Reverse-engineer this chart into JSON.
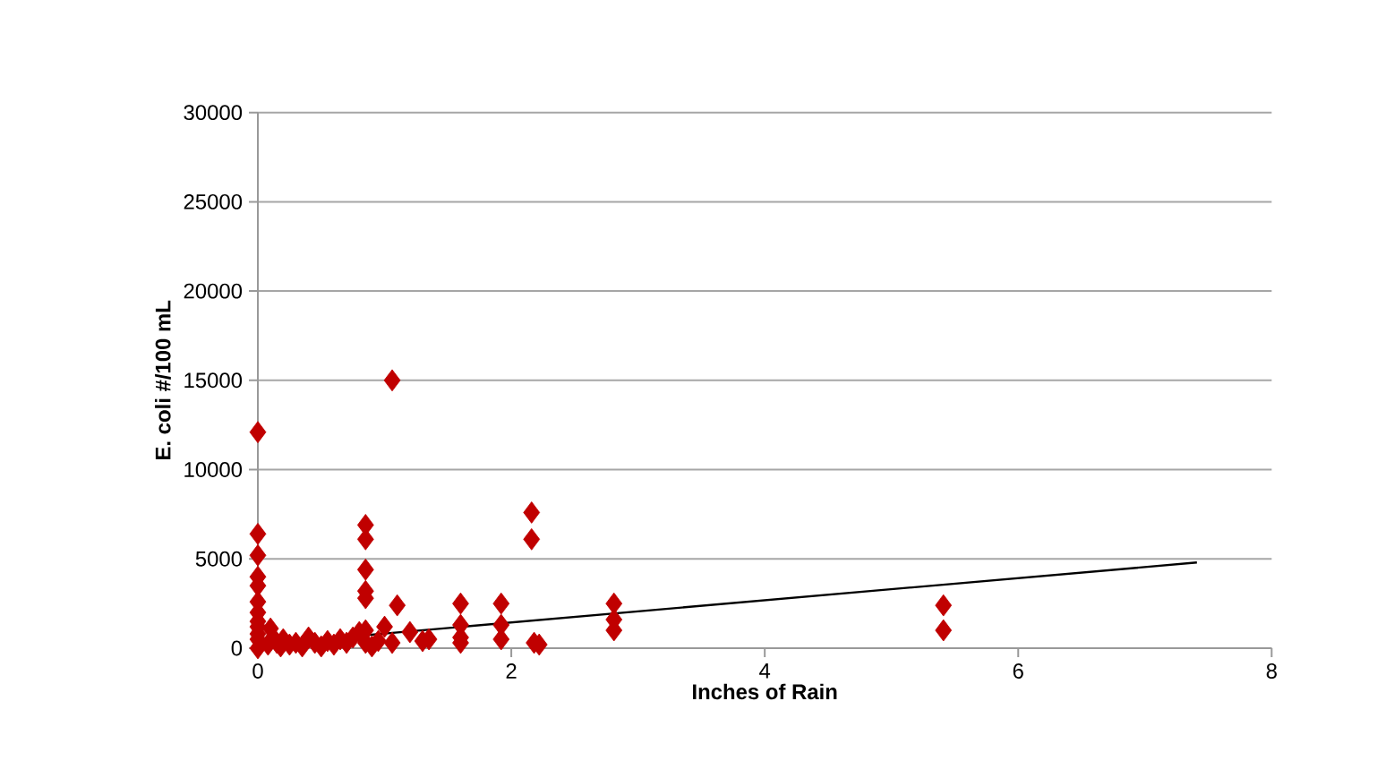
{
  "chart_data": {
    "type": "scatter",
    "xlabel": "Inches of Rain",
    "ylabel": "E. coli #/100 mL",
    "xlim": [
      0,
      8
    ],
    "xticks": [
      0,
      2,
      4,
      6,
      8
    ],
    "ylim": [
      0,
      30000
    ],
    "yticks": [
      0,
      5000,
      10000,
      15000,
      20000,
      25000,
      30000
    ],
    "grid": "y",
    "marker": "diamond",
    "series": [
      {
        "color": "#c00000",
        "x": [
          0,
          0,
          0,
          0,
          0,
          0,
          0,
          0,
          0,
          0,
          0,
          0,
          0.08,
          0.1,
          0.12,
          0.15,
          0.18,
          0.2,
          0.25,
          0.3,
          0.35,
          0.4,
          0.45,
          0.5,
          0.55,
          0.6,
          0.65,
          0.7,
          0.75,
          0.8,
          0.85,
          0.85,
          0.85,
          0.85,
          0.85,
          0.85,
          0.85,
          0.9,
          0.95,
          1.0,
          1.06,
          1.06,
          1.1,
          1.2,
          1.3,
          1.35,
          1.6,
          1.6,
          1.6,
          1.6,
          1.92,
          1.92,
          1.92,
          2.16,
          2.16,
          2.18,
          2.22,
          2.81,
          2.81,
          2.81,
          5.41,
          5.41
        ],
        "values": [
          12100,
          6400,
          5200,
          4000,
          3500,
          2600,
          2000,
          1500,
          1200,
          800,
          500,
          0,
          200,
          1100,
          600,
          300,
          100,
          500,
          200,
          300,
          100,
          600,
          300,
          100,
          400,
          200,
          500,
          300,
          600,
          900,
          6900,
          6100,
          4400,
          3200,
          2800,
          1000,
          300,
          100,
          400,
          1200,
          15000,
          300,
          2400,
          900,
          400,
          500,
          2500,
          1300,
          600,
          300,
          2500,
          1300,
          500,
          7600,
          6100,
          300,
          200,
          2500,
          1600,
          1000,
          2400,
          1000
        ]
      },
      {
        "type": "line",
        "color": "#000000",
        "marker": "none",
        "x": [
          0,
          7.41
        ],
        "values": [
          200,
          4800
        ]
      }
    ]
  }
}
